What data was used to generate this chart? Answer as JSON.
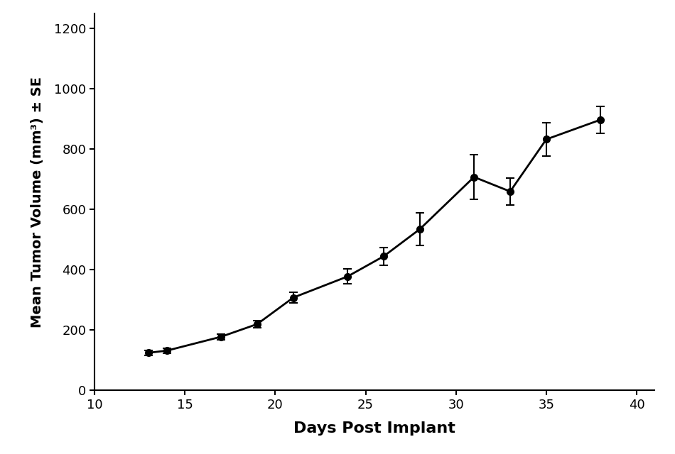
{
  "x": [
    13,
    14,
    17,
    19,
    21,
    24,
    26,
    28,
    31,
    33,
    35,
    38
  ],
  "y": [
    125,
    132,
    178,
    220,
    308,
    378,
    445,
    535,
    708,
    660,
    833,
    898
  ],
  "yerr": [
    8,
    8,
    10,
    12,
    18,
    25,
    30,
    55,
    75,
    45,
    55,
    45
  ],
  "xlabel": "Days Post Implant",
  "ylabel": "Mean Tumor Volume (mm³) ± SE",
  "xlim": [
    10,
    41
  ],
  "ylim": [
    0,
    1250
  ],
  "xticks": [
    10,
    15,
    20,
    25,
    30,
    35,
    40
  ],
  "yticks": [
    0,
    200,
    400,
    600,
    800,
    1000,
    1200
  ],
  "line_color": "#000000",
  "markersize": 7,
  "linewidth": 2.0,
  "elinewidth": 1.5,
  "capsize": 4,
  "background_color": "#ffffff",
  "xlabel_fontsize": 16,
  "ylabel_fontsize": 14,
  "tick_labelsize": 13
}
